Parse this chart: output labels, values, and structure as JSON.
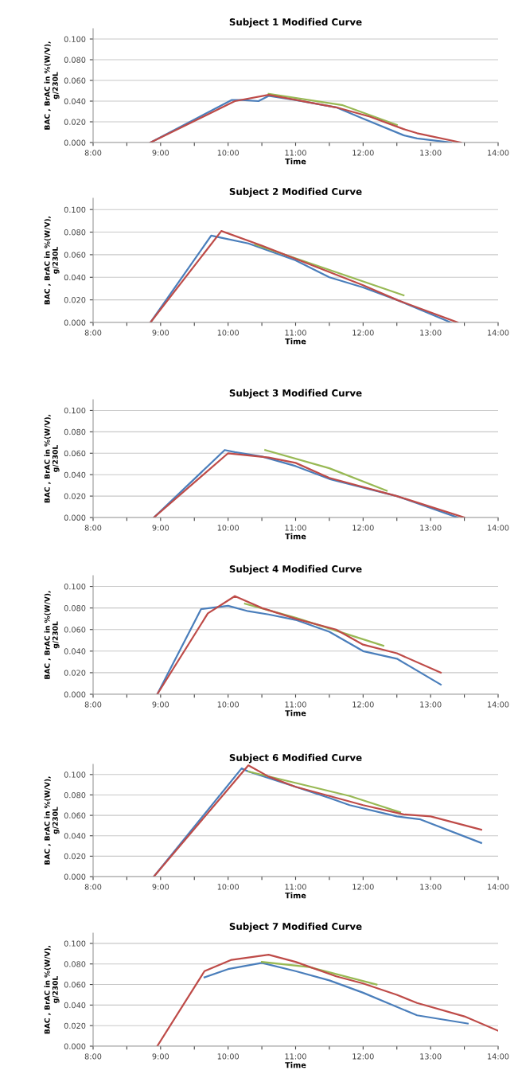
{
  "chart_data": [
    {
      "type": "line",
      "title": "Subject 1 Modified Curve",
      "xlabel": "Time",
      "ylabel": "BAC , BrAC in %(W/V),\ng/230L",
      "xlim": [
        8,
        14
      ],
      "ylim": [
        0,
        0.11
      ],
      "xticks": [
        {
          "value": 8,
          "label": "8:00"
        },
        {
          "value": 8.5,
          "label": null
        },
        {
          "value": 9,
          "label": "9:00"
        },
        {
          "value": 9.5,
          "label": null
        },
        {
          "value": 10,
          "label": "10:00"
        },
        {
          "value": 10.5,
          "label": null
        },
        {
          "value": 11,
          "label": "11:00"
        },
        {
          "value": 11.5,
          "label": null
        },
        {
          "value": 12,
          "label": "12:00"
        },
        {
          "value": 12.5,
          "label": null
        },
        {
          "value": 13,
          "label": "13:00"
        },
        {
          "value": 13.5,
          "label": null
        },
        {
          "value": 14,
          "label": "14:00"
        }
      ],
      "yticks": [
        {
          "value": 0,
          "label": "0.000"
        },
        {
          "value": 0.02,
          "label": "0.020"
        },
        {
          "value": 0.04,
          "label": "0.040"
        },
        {
          "value": 0.06,
          "label": "0.060"
        },
        {
          "value": 0.08,
          "label": "0.080"
        },
        {
          "value": 0.1,
          "label": "0.100"
        }
      ],
      "grid": "y",
      "series": [
        {
          "color": "#4a7ebb",
          "x": [
            8.85,
            10.05,
            10.2,
            10.45,
            10.6,
            11,
            11.6,
            12,
            12.6,
            12.8,
            13.3
          ],
          "values": [
            0,
            0.041,
            0.041,
            0.04,
            0.045,
            0.041,
            0.034,
            0.023,
            0.007,
            0.004,
            0
          ]
        },
        {
          "color": "#98b954",
          "x": [
            10.6,
            11.7,
            12.5
          ],
          "values": [
            0.047,
            0.036,
            0.017
          ]
        },
        {
          "color": "#be4b48",
          "x": [
            8.85,
            10.1,
            10.6,
            11.6,
            12.1,
            12.6,
            12.8,
            13.45
          ],
          "values": [
            0,
            0.04,
            0.046,
            0.034,
            0.025,
            0.013,
            0.009,
            0
          ]
        }
      ]
    },
    {
      "type": "line",
      "title": "Subject 2 Modified Curve",
      "xlabel": "Time",
      "ylabel": "BAC , BrAC in %(W/V),\ng/230L",
      "xlim": [
        8,
        14
      ],
      "ylim": [
        0,
        0.11
      ],
      "xticks": [
        {
          "value": 8,
          "label": "8:00"
        },
        {
          "value": 8.5,
          "label": null
        },
        {
          "value": 9,
          "label": "9:00"
        },
        {
          "value": 9.5,
          "label": null
        },
        {
          "value": 10,
          "label": "10:00"
        },
        {
          "value": 10.5,
          "label": null
        },
        {
          "value": 11,
          "label": "11:00"
        },
        {
          "value": 11.5,
          "label": null
        },
        {
          "value": 12,
          "label": "12:00"
        },
        {
          "value": 12.5,
          "label": null
        },
        {
          "value": 13,
          "label": "13:00"
        },
        {
          "value": 13.5,
          "label": null
        },
        {
          "value": 14,
          "label": "14:00"
        }
      ],
      "yticks": [
        {
          "value": 0,
          "label": "0.000"
        },
        {
          "value": 0.02,
          "label": "0.020"
        },
        {
          "value": 0.04,
          "label": "0.040"
        },
        {
          "value": 0.06,
          "label": "0.060"
        },
        {
          "value": 0.08,
          "label": "0.080"
        },
        {
          "value": 0.1,
          "label": "0.100"
        }
      ],
      "grid": "y",
      "series": [
        {
          "color": "#4a7ebb",
          "x": [
            8.85,
            9.75,
            9.9,
            10.3,
            11,
            11.5,
            12,
            12.5,
            13.3
          ],
          "values": [
            0,
            0.077,
            0.075,
            0.07,
            0.055,
            0.04,
            0.031,
            0.02,
            0
          ]
        },
        {
          "color": "#98b954",
          "x": [
            10.4,
            12.6
          ],
          "values": [
            0.069,
            0.024
          ]
        },
        {
          "color": "#be4b48",
          "x": [
            8.85,
            9.9,
            10.5,
            12,
            12.5,
            13.4
          ],
          "values": [
            0,
            0.081,
            0.068,
            0.033,
            0.02,
            0
          ]
        }
      ]
    },
    {
      "type": "line",
      "title": "Subject 3 Modified Curve",
      "xlabel": "Time",
      "ylabel": "BAC , BrAC in %(W/V),\ng/230L",
      "xlim": [
        8,
        14
      ],
      "ylim": [
        0,
        0.11
      ],
      "xticks": [
        {
          "value": 8,
          "label": "8:00"
        },
        {
          "value": 8.5,
          "label": null
        },
        {
          "value": 9,
          "label": "9:00"
        },
        {
          "value": 9.5,
          "label": null
        },
        {
          "value": 10,
          "label": "10:00"
        },
        {
          "value": 10.5,
          "label": null
        },
        {
          "value": 11,
          "label": "11:00"
        },
        {
          "value": 11.5,
          "label": null
        },
        {
          "value": 12,
          "label": "12:00"
        },
        {
          "value": 12.5,
          "label": null
        },
        {
          "value": 13,
          "label": "13:00"
        },
        {
          "value": 13.5,
          "label": null
        },
        {
          "value": 14,
          "label": "14:00"
        }
      ],
      "yticks": [
        {
          "value": 0,
          "label": "0.000"
        },
        {
          "value": 0.02,
          "label": "0.020"
        },
        {
          "value": 0.04,
          "label": "0.040"
        },
        {
          "value": 0.06,
          "label": "0.060"
        },
        {
          "value": 0.08,
          "label": "0.080"
        },
        {
          "value": 0.1,
          "label": "0.100"
        }
      ],
      "grid": "y",
      "series": [
        {
          "color": "#4a7ebb",
          "x": [
            8.9,
            9.95,
            10.1,
            10.5,
            11,
            11.5,
            12,
            12.5,
            13.4
          ],
          "values": [
            0,
            0.063,
            0.061,
            0.057,
            0.048,
            0.036,
            0.028,
            0.02,
            0
          ]
        },
        {
          "color": "#98b954",
          "x": [
            10.55,
            11.5,
            12.35
          ],
          "values": [
            0.063,
            0.046,
            0.025
          ]
        },
        {
          "color": "#be4b48",
          "x": [
            8.9,
            10,
            10.6,
            11,
            11.5,
            12.5,
            13.5
          ],
          "values": [
            0,
            0.06,
            0.056,
            0.051,
            0.037,
            0.02,
            0
          ]
        }
      ]
    },
    {
      "type": "line",
      "title": "Subject 4 Modified Curve",
      "xlabel": "Time",
      "ylabel": "BAC , BrAC in %(W/V),\ng/230L",
      "xlim": [
        8,
        14
      ],
      "ylim": [
        0,
        0.11
      ],
      "xticks": [
        {
          "value": 8,
          "label": "8:00"
        },
        {
          "value": 8.5,
          "label": null
        },
        {
          "value": 9,
          "label": "9:00"
        },
        {
          "value": 9.5,
          "label": null
        },
        {
          "value": 10,
          "label": "10:00"
        },
        {
          "value": 10.5,
          "label": null
        },
        {
          "value": 11,
          "label": "11:00"
        },
        {
          "value": 11.5,
          "label": null
        },
        {
          "value": 12,
          "label": "12:00"
        },
        {
          "value": 12.5,
          "label": null
        },
        {
          "value": 13,
          "label": "13:00"
        },
        {
          "value": 13.5,
          "label": null
        },
        {
          "value": 14,
          "label": "14:00"
        }
      ],
      "yticks": [
        {
          "value": 0,
          "label": "0.000"
        },
        {
          "value": 0.02,
          "label": "0.020"
        },
        {
          "value": 0.04,
          "label": "0.040"
        },
        {
          "value": 0.06,
          "label": "0.060"
        },
        {
          "value": 0.08,
          "label": "0.080"
        },
        {
          "value": 0.1,
          "label": "0.100"
        }
      ],
      "grid": "y",
      "series": [
        {
          "color": "#4a7ebb",
          "x": [
            8.95,
            9.6,
            10,
            10.3,
            10.6,
            11,
            11.5,
            12,
            12.5,
            13.15
          ],
          "values": [
            0,
            0.079,
            0.082,
            0.077,
            0.074,
            0.069,
            0.058,
            0.04,
            0.033,
            0.009
          ]
        },
        {
          "color": "#98b954",
          "x": [
            10.25,
            11,
            11.6,
            12.3
          ],
          "values": [
            0.084,
            0.071,
            0.059,
            0.045
          ]
        },
        {
          "color": "#be4b48",
          "x": [
            8.95,
            9.7,
            10.1,
            10.5,
            11,
            11.6,
            12,
            12.5,
            13.15
          ],
          "values": [
            0,
            0.075,
            0.091,
            0.08,
            0.07,
            0.06,
            0.046,
            0.038,
            0.02
          ]
        }
      ]
    },
    {
      "type": "line",
      "title": "Subject 6 Modified Curve",
      "xlabel": "Time",
      "ylabel": "BAC , BrAC in %(W/V),\ng/230L",
      "xlim": [
        8,
        14
      ],
      "ylim": [
        0,
        0.11
      ],
      "xticks": [
        {
          "value": 8,
          "label": "8:00"
        },
        {
          "value": 8.5,
          "label": null
        },
        {
          "value": 9,
          "label": "9:00"
        },
        {
          "value": 9.5,
          "label": null
        },
        {
          "value": 10,
          "label": "10:00"
        },
        {
          "value": 10.5,
          "label": null
        },
        {
          "value": 11,
          "label": "11:00"
        },
        {
          "value": 11.5,
          "label": null
        },
        {
          "value": 12,
          "label": "12:00"
        },
        {
          "value": 12.5,
          "label": null
        },
        {
          "value": 13,
          "label": "13:00"
        },
        {
          "value": 13.5,
          "label": null
        },
        {
          "value": 14,
          "label": "14:00"
        }
      ],
      "yticks": [
        {
          "value": 0,
          "label": "0.000"
        },
        {
          "value": 0.02,
          "label": "0.020"
        },
        {
          "value": 0.04,
          "label": "0.040"
        },
        {
          "value": 0.06,
          "label": "0.060"
        },
        {
          "value": 0.08,
          "label": "0.080"
        },
        {
          "value": 0.1,
          "label": "0.100"
        }
      ],
      "grid": "y",
      "series": [
        {
          "color": "#4a7ebb",
          "x": [
            8.9,
            10.2,
            10.3,
            11,
            11.5,
            11.8,
            12.5,
            12.85,
            13.75
          ],
          "values": [
            0,
            0.106,
            0.103,
            0.088,
            0.077,
            0.07,
            0.059,
            0.056,
            0.033
          ]
        },
        {
          "color": "#98b954",
          "x": [
            10.3,
            11.8,
            12.55
          ],
          "values": [
            0.103,
            0.079,
            0.063
          ]
        },
        {
          "color": "#be4b48",
          "x": [
            8.9,
            10.3,
            10.6,
            11,
            11.5,
            12,
            12.6,
            13,
            13.75
          ],
          "values": [
            0,
            0.109,
            0.098,
            0.088,
            0.079,
            0.07,
            0.061,
            0.059,
            0.046
          ]
        }
      ]
    },
    {
      "type": "line",
      "title": "Subject 7 Modified Curve",
      "xlabel": "Time",
      "ylabel": "BAC , BrAC in %(W/V),\ng/230L",
      "xlim": [
        8,
        14
      ],
      "ylim": [
        0,
        0.11
      ],
      "xticks": [
        {
          "value": 8,
          "label": "8:00"
        },
        {
          "value": 8.5,
          "label": null
        },
        {
          "value": 9,
          "label": "9:00"
        },
        {
          "value": 9.5,
          "label": null
        },
        {
          "value": 10,
          "label": "10:00"
        },
        {
          "value": 10.5,
          "label": null
        },
        {
          "value": 11,
          "label": "11:00"
        },
        {
          "value": 11.5,
          "label": null
        },
        {
          "value": 12,
          "label": "12:00"
        },
        {
          "value": 12.5,
          "label": null
        },
        {
          "value": 13,
          "label": "13:00"
        },
        {
          "value": 13.5,
          "label": null
        },
        {
          "value": 14,
          "label": "14:00"
        }
      ],
      "yticks": [
        {
          "value": 0,
          "label": "0.000"
        },
        {
          "value": 0.02,
          "label": "0.020"
        },
        {
          "value": 0.04,
          "label": "0.040"
        },
        {
          "value": 0.06,
          "label": "0.060"
        },
        {
          "value": 0.08,
          "label": "0.080"
        },
        {
          "value": 0.1,
          "label": "0.100"
        }
      ],
      "grid": "y",
      "series": [
        {
          "color": "#4a7ebb",
          "x": [
            9.65,
            10,
            10.5,
            11,
            11.5,
            12,
            12.8,
            13.55
          ],
          "values": [
            0.067,
            0.075,
            0.081,
            0.073,
            0.064,
            0.052,
            0.03,
            0.022
          ]
        },
        {
          "color": "#98b954",
          "x": [
            10.5,
            11.2,
            12.2
          ],
          "values": [
            0.082,
            0.077,
            0.06
          ]
        },
        {
          "color": "#be4b48",
          "x": [
            8.95,
            9.65,
            10.05,
            10.6,
            11,
            11.6,
            12,
            12.5,
            12.8,
            13.5,
            14
          ],
          "values": [
            0,
            0.073,
            0.084,
            0.089,
            0.082,
            0.068,
            0.061,
            0.05,
            0.042,
            0.029,
            0.015
          ]
        }
      ]
    }
  ]
}
